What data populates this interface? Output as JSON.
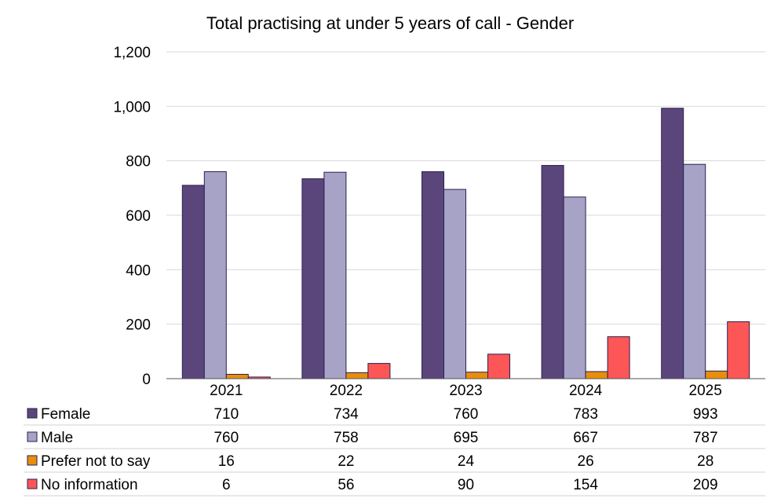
{
  "chart_data": {
    "type": "bar",
    "title": "Total practising at under 5 years of call - Gender",
    "categories": [
      "2021",
      "2022",
      "2023",
      "2024",
      "2025"
    ],
    "ylim": [
      0,
      1200
    ],
    "yticks": [
      0,
      200,
      400,
      600,
      800,
      1000,
      1200
    ],
    "ytick_labels": [
      "0",
      "200",
      "400",
      "600",
      "800",
      "1,000",
      "1,200"
    ],
    "grid": true,
    "legend_placement": "data-table-below",
    "series": [
      {
        "name": "Female",
        "color": "#5b467c",
        "values": [
          710,
          734,
          760,
          783,
          993
        ]
      },
      {
        "name": "Male",
        "color": "#a6a3c6",
        "values": [
          760,
          758,
          695,
          667,
          787
        ]
      },
      {
        "name": "Prefer not to say",
        "color": "#e88e0c",
        "values": [
          16,
          22,
          24,
          26,
          28
        ]
      },
      {
        "name": "No information",
        "color": "#fd5656",
        "values": [
          6,
          56,
          90,
          154,
          209
        ]
      }
    ]
  }
}
